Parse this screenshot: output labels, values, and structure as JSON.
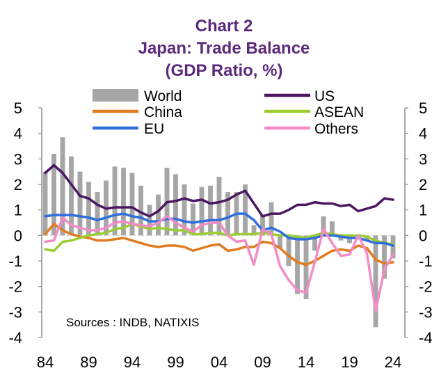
{
  "colors": {
    "title": "#5b2a7a",
    "world": "#a6a6a6",
    "us": "#4b1763",
    "china": "#e07b1f",
    "asean": "#9acd32",
    "eu": "#2f6fdd",
    "others": "#f38bc7",
    "axis": "#8c8c8c"
  },
  "chart_data": {
    "type": "bar+line",
    "title": [
      "Chart 2",
      "Japan:  Trade Balance",
      "(GDP Ratio, %)"
    ],
    "source": "Sources : INDB, NATIXIS",
    "xlabel": "",
    "ylabel": "",
    "ylim": [
      -4,
      5
    ],
    "y_ticks": [
      "5",
      "4",
      "3",
      "2",
      "1",
      "0",
      "-1",
      "-2",
      "-3",
      "-4"
    ],
    "x_ticks": [
      "84",
      "89",
      "94",
      "99",
      "04",
      "09",
      "14",
      "19",
      "24"
    ],
    "x_range": [
      1984,
      2024
    ],
    "legend_position": "top",
    "legend": [
      "World",
      "US",
      "China",
      "ASEAN",
      "EU",
      "Others"
    ],
    "bars": {
      "name": "World",
      "x": [
        1984,
        1985,
        1986,
        1987,
        1988,
        1989,
        1990,
        1991,
        1992,
        1993,
        1994,
        1995,
        1996,
        1997,
        1998,
        1999,
        2000,
        2001,
        2002,
        2003,
        2004,
        2005,
        2006,
        2007,
        2008,
        2009,
        2010,
        2011,
        2012,
        2013,
        2014,
        2015,
        2016,
        2017,
        2018,
        2019,
        2020,
        2021,
        2022,
        2023,
        2024
      ],
      "values": [
        2.5,
        3.2,
        3.85,
        3.1,
        2.5,
        2.1,
        1.7,
        2.15,
        2.7,
        2.65,
        2.45,
        1.95,
        1.2,
        1.6,
        2.65,
        2.4,
        2.0,
        1.25,
        1.9,
        1.95,
        2.3,
        1.7,
        1.7,
        2.0,
        0.4,
        0.8,
        1.3,
        -0.5,
        -1.2,
        -2.3,
        -2.5,
        -0.6,
        0.75,
        0.55,
        -0.2,
        -0.3,
        0.05,
        -0.2,
        -3.6,
        -1.7,
        -0.9
      ]
    },
    "series": [
      {
        "name": "US",
        "x": [
          1984,
          1985,
          1986,
          1987,
          1988,
          1989,
          1990,
          1991,
          1992,
          1993,
          1994,
          1995,
          1996,
          1997,
          1998,
          1999,
          2000,
          2001,
          2002,
          2003,
          2004,
          2005,
          2006,
          2007,
          2008,
          2009,
          2010,
          2011,
          2012,
          2013,
          2014,
          2015,
          2016,
          2017,
          2018,
          2019,
          2020,
          2021,
          2022,
          2023,
          2024
        ],
        "values": [
          2.45,
          2.75,
          2.45,
          2.0,
          1.55,
          1.45,
          1.2,
          1.05,
          1.1,
          1.1,
          1.1,
          0.9,
          0.75,
          0.95,
          1.3,
          1.35,
          1.45,
          1.35,
          1.4,
          1.25,
          1.3,
          1.4,
          1.6,
          1.75,
          1.25,
          0.75,
          0.85,
          0.85,
          1.0,
          1.2,
          1.2,
          1.3,
          1.25,
          1.25,
          1.15,
          1.2,
          0.95,
          1.05,
          1.15,
          1.45,
          1.4
        ]
      },
      {
        "name": "China",
        "x": [
          1984,
          1985,
          1986,
          1987,
          1988,
          1989,
          1990,
          1991,
          1992,
          1993,
          1994,
          1995,
          1996,
          1997,
          1998,
          1999,
          2000,
          2001,
          2002,
          2003,
          2004,
          2005,
          2006,
          2007,
          2008,
          2009,
          2010,
          2011,
          2012,
          2013,
          2014,
          2015,
          2016,
          2017,
          2018,
          2019,
          2020,
          2021,
          2022,
          2023,
          2024
        ],
        "values": [
          0.05,
          0.45,
          0.2,
          0.05,
          -0.05,
          -0.1,
          -0.2,
          -0.2,
          -0.15,
          -0.1,
          -0.2,
          -0.3,
          -0.4,
          -0.45,
          -0.4,
          -0.4,
          -0.45,
          -0.6,
          -0.5,
          -0.4,
          -0.35,
          -0.6,
          -0.55,
          -0.45,
          -0.45,
          -0.25,
          -0.3,
          -0.5,
          -0.8,
          -1.05,
          -1.15,
          -1.0,
          -0.8,
          -0.6,
          -0.55,
          -0.6,
          -0.4,
          -0.5,
          -0.95,
          -1.1,
          -1.05
        ]
      },
      {
        "name": "ASEAN",
        "x": [
          1984,
          1985,
          1986,
          1987,
          1988,
          1989,
          1990,
          1991,
          1992,
          1993,
          1994,
          1995,
          1996,
          1997,
          1998,
          1999,
          2000,
          2001,
          2002,
          2003,
          2004,
          2005,
          2006,
          2007,
          2008,
          2009,
          2010,
          2011,
          2012,
          2013,
          2014,
          2015,
          2016,
          2017,
          2018,
          2019,
          2020,
          2021,
          2022,
          2023,
          2024
        ],
        "values": [
          -0.55,
          -0.6,
          -0.25,
          -0.2,
          -0.1,
          0.0,
          0.05,
          0.1,
          0.25,
          0.3,
          0.45,
          0.35,
          0.25,
          0.3,
          0.25,
          0.2,
          0.2,
          0.05,
          0.05,
          0.1,
          0.1,
          0.0,
          0.05,
          0.05,
          0.05,
          0.1,
          0.05,
          0.0,
          0.0,
          -0.05,
          -0.1,
          0.0,
          0.1,
          0.05,
          0.0,
          0.0,
          0.0,
          -0.05,
          -0.2,
          -0.3,
          -0.35
        ]
      },
      {
        "name": "EU",
        "x": [
          1984,
          1985,
          1986,
          1987,
          1988,
          1989,
          1990,
          1991,
          1992,
          1993,
          1994,
          1995,
          1996,
          1997,
          1998,
          1999,
          2000,
          2001,
          2002,
          2003,
          2004,
          2005,
          2006,
          2007,
          2008,
          2009,
          2010,
          2011,
          2012,
          2013,
          2014,
          2015,
          2016,
          2017,
          2018,
          2019,
          2020,
          2021,
          2022,
          2023,
          2024
        ],
        "values": [
          0.75,
          0.8,
          0.8,
          0.8,
          0.75,
          0.7,
          0.6,
          0.7,
          0.8,
          0.85,
          0.75,
          0.7,
          0.55,
          0.55,
          0.65,
          0.65,
          0.55,
          0.5,
          0.55,
          0.6,
          0.6,
          0.7,
          0.85,
          0.85,
          0.6,
          0.2,
          0.3,
          0.15,
          -0.1,
          -0.15,
          -0.15,
          -0.1,
          0.0,
          0.0,
          -0.05,
          -0.1,
          -0.1,
          -0.2,
          -0.3,
          -0.3,
          -0.4
        ]
      },
      {
        "name": "Others",
        "x": [
          1984,
          1985,
          1986,
          1987,
          1988,
          1989,
          1990,
          1991,
          1992,
          1993,
          1994,
          1995,
          1996,
          1997,
          1998,
          1999,
          2000,
          2001,
          2002,
          2003,
          2004,
          2005,
          2006,
          2007,
          2008,
          2009,
          2010,
          2011,
          2012,
          2013,
          2014,
          2015,
          2016,
          2017,
          2018,
          2019,
          2020,
          2021,
          2022,
          2023,
          2024
        ],
        "values": [
          -0.25,
          -0.2,
          0.7,
          0.4,
          0.3,
          0.2,
          0.2,
          0.3,
          0.5,
          0.55,
          0.45,
          0.4,
          0.35,
          0.5,
          0.75,
          0.5,
          0.3,
          0.15,
          0.4,
          0.5,
          0.5,
          0.0,
          -0.25,
          -0.2,
          -1.15,
          0.25,
          0.05,
          -1.2,
          -1.75,
          -2.15,
          -2.25,
          -1.05,
          0.25,
          -0.3,
          -0.8,
          -0.75,
          0.0,
          -0.7,
          -2.95,
          -1.35,
          -0.75
        ]
      }
    ]
  }
}
